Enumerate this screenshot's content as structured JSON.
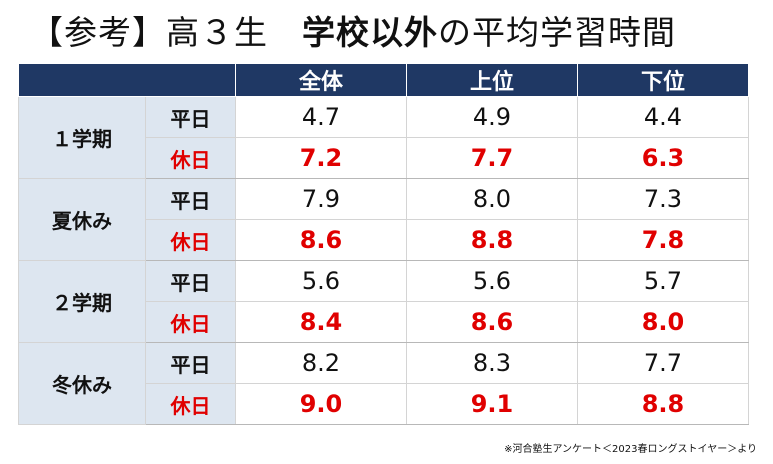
{
  "title": {
    "prefix": "【参考】高３生",
    "bold": "学校以外",
    "suffix": "の平均学習時間"
  },
  "header": {
    "corner": "",
    "columns": [
      "全体",
      "上位",
      "下位"
    ]
  },
  "rows": [
    {
      "period": "１学期",
      "days": [
        {
          "label": "平日",
          "type": "weekday",
          "values": [
            "4.7",
            "4.9",
            "4.4"
          ]
        },
        {
          "label": "休日",
          "type": "holiday",
          "values": [
            "7.2",
            "7.7",
            "6.3"
          ]
        }
      ]
    },
    {
      "period": "夏休み",
      "days": [
        {
          "label": "平日",
          "type": "weekday",
          "values": [
            "7.9",
            "8.0",
            "7.3"
          ]
        },
        {
          "label": "休日",
          "type": "holiday",
          "values": [
            "8.6",
            "8.8",
            "7.8"
          ]
        }
      ]
    },
    {
      "period": "２学期",
      "days": [
        {
          "label": "平日",
          "type": "weekday",
          "values": [
            "5.6",
            "5.6",
            "5.7"
          ]
        },
        {
          "label": "休日",
          "type": "holiday",
          "values": [
            "8.4",
            "8.6",
            "8.0"
          ]
        }
      ]
    },
    {
      "period": "冬休み",
      "days": [
        {
          "label": "平日",
          "type": "weekday",
          "values": [
            "8.2",
            "8.3",
            "7.7"
          ]
        },
        {
          "label": "休日",
          "type": "holiday",
          "values": [
            "9.0",
            "9.1",
            "8.8"
          ]
        }
      ]
    }
  ],
  "footnote": "※河合塾生アンケート＜2023春ロングストイヤー＞より",
  "colors": {
    "header_bg": "#1f3864",
    "label_bg": "#dde6f0",
    "holiday_text": "#e00000"
  }
}
